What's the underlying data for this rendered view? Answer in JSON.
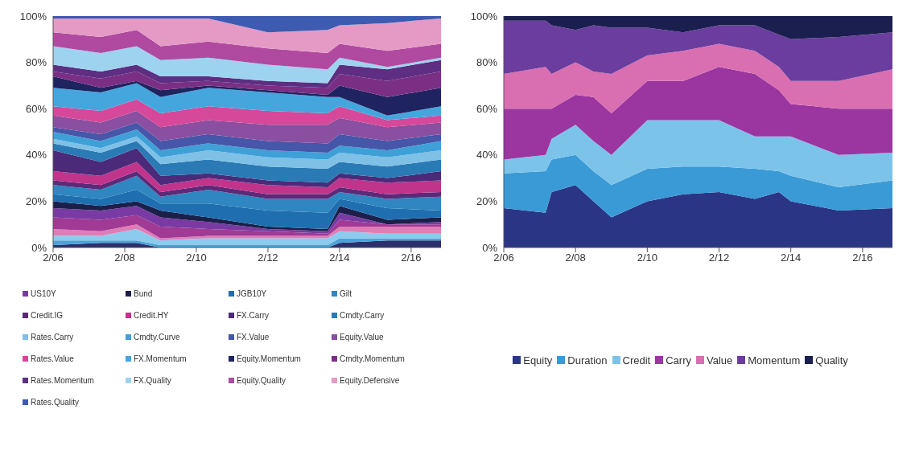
{
  "chart_data": [
    {
      "type": "area",
      "stacked": true,
      "legend": "bottom",
      "grid": false,
      "x": [
        "2006-02",
        "2007-06",
        "2008-06",
        "2009-02",
        "2010-06",
        "2012-02",
        "2013-10",
        "2014-02",
        "2015-06",
        "2016-12"
      ],
      "xlim": [
        "2006-02",
        "2016-12"
      ],
      "xticks": [
        {
          "value": "2006-02",
          "label": "2/06"
        },
        {
          "value": "2008-02",
          "label": "2/08"
        },
        {
          "value": "2010-02",
          "label": "2/10"
        },
        {
          "value": "2012-02",
          "label": "2/12"
        },
        {
          "value": "2014-02",
          "label": "2/14"
        },
        {
          "value": "2016-02",
          "label": "2/16"
        }
      ],
      "ylim": [
        0,
        100
      ],
      "yticks": [
        {
          "value": 0,
          "label": "0%"
        },
        {
          "value": 20,
          "label": "20%"
        },
        {
          "value": 40,
          "label": "40%"
        },
        {
          "value": 60,
          "label": "60%"
        },
        {
          "value": 80,
          "label": "80%"
        },
        {
          "value": 100,
          "label": "100%"
        }
      ],
      "series": [
        {
          "color": "#2b2f6e",
          "values": [
            1,
            2,
            2,
            0,
            0,
            0,
            0,
            2,
            3,
            3
          ]
        },
        {
          "color": "#4aa3d8",
          "values": [
            2,
            1,
            1,
            1,
            1,
            1,
            1,
            2,
            1,
            1
          ]
        },
        {
          "color": "#8ccbed",
          "values": [
            2,
            2,
            5,
            2,
            3,
            3,
            3,
            3,
            2,
            2
          ]
        },
        {
          "color": "#e07db6",
          "values": [
            3,
            2,
            2,
            1,
            1,
            1,
            1,
            2,
            3,
            3
          ]
        },
        {
          "color": "#a03a95",
          "values": [
            5,
            5,
            4,
            5,
            3,
            2,
            1,
            3,
            1,
            1
          ]
        },
        {
          "name": "US10Y",
          "color": "#7a3aa3",
          "values": [
            4,
            4,
            4,
            4,
            3,
            1,
            1,
            3,
            0,
            1
          ]
        },
        {
          "name": "Bund",
          "color": "#1c1f4a",
          "values": [
            3,
            2,
            2,
            3,
            2,
            1,
            1,
            3,
            2,
            2
          ]
        },
        {
          "name": "JGB10Y",
          "color": "#1f6fb0",
          "values": [
            3,
            3,
            5,
            3,
            6,
            7,
            7,
            3,
            5,
            3
          ]
        },
        {
          "name": "Gilt",
          "color": "#2f86c0",
          "values": [
            4,
            4,
            6,
            3,
            6,
            5,
            6,
            3,
            4,
            6
          ]
        },
        {
          "name": "Credit.IG",
          "color": "#5b2a78",
          "values": [
            2,
            2,
            2,
            2,
            2,
            2,
            2,
            2,
            2,
            2
          ]
        },
        {
          "name": "Credit.HY",
          "color": "#c0348c",
          "values": [
            4,
            4,
            4,
            3,
            3,
            4,
            3,
            4,
            5,
            5
          ]
        },
        {
          "name": "FX.Carry",
          "color": "#4b2a7a",
          "values": [
            9,
            6,
            6,
            4,
            2,
            2,
            2,
            2,
            2,
            4
          ]
        },
        {
          "name": "Cmdty.Carry",
          "color": "#2a7ab5",
          "values": [
            3,
            4,
            3,
            5,
            6,
            6,
            6,
            5,
            5,
            5
          ]
        },
        {
          "name": "Rates.Carry",
          "color": "#7ec0e6",
          "values": [
            2,
            2,
            2,
            3,
            4,
            4,
            4,
            4,
            4,
            4
          ]
        },
        {
          "name": "Cmdty.Curve",
          "color": "#3fa0d8",
          "values": [
            3,
            3,
            3,
            3,
            3,
            3,
            3,
            3,
            3,
            4
          ]
        },
        {
          "name": "FX.Value",
          "color": "#4656a8",
          "values": [
            2,
            3,
            3,
            4,
            4,
            4,
            4,
            5,
            4,
            3
          ]
        },
        {
          "name": "Equity.Value",
          "color": "#8a4fa0",
          "values": [
            5,
            5,
            5,
            6,
            6,
            7,
            8,
            7,
            6,
            5
          ]
        },
        {
          "name": "Rates.Value",
          "color": "#d6489a",
          "values": [
            4,
            5,
            5,
            6,
            6,
            6,
            5,
            5,
            3,
            3
          ]
        },
        {
          "name": "FX.Momentum",
          "color": "#45a6de",
          "values": [
            8,
            8,
            7,
            7,
            8,
            8,
            7,
            4,
            2,
            4
          ]
        },
        {
          "name": "Equity.Momentum",
          "color": "#1f2460",
          "values": [
            5,
            2,
            1,
            3,
            1,
            1,
            1,
            5,
            8,
            8
          ]
        },
        {
          "name": "Cmdty.Momentum",
          "color": "#7a2f85",
          "values": [
            2,
            4,
            4,
            3,
            2,
            2,
            3,
            5,
            7,
            7
          ]
        },
        {
          "name": "Rates.Momentum",
          "color": "#5e2e82",
          "values": [
            3,
            3,
            3,
            3,
            2,
            2,
            2,
            4,
            5,
            5
          ]
        },
        {
          "name": "FX.Quality",
          "color": "#9ed3f0",
          "values": [
            8,
            8,
            8,
            7,
            8,
            7,
            6,
            3,
            1,
            1
          ]
        },
        {
          "name": "Equity.Quality",
          "color": "#b04aa0",
          "values": [
            6,
            7,
            7,
            6,
            7,
            7,
            7,
            6,
            7,
            6
          ]
        },
        {
          "name": "Equity.Defensive",
          "color": "#e59ac6",
          "values": [
            6,
            8,
            5,
            12,
            10,
            7,
            10,
            8,
            12,
            11
          ]
        },
        {
          "name": "Rates.Quality",
          "color": "#3d5bb0",
          "values": [
            1,
            1,
            1,
            1,
            1,
            7,
            6,
            4,
            3,
            1
          ]
        }
      ]
    },
    {
      "type": "area",
      "stacked": true,
      "legend": "bottom",
      "grid": false,
      "x": [
        "2006-02",
        "2007-04",
        "2007-06",
        "2008-02",
        "2008-08",
        "2009-02",
        "2010-02",
        "2011-02",
        "2012-02",
        "2013-02",
        "2013-10",
        "2014-02",
        "2015-06",
        "2016-12"
      ],
      "xlim": [
        "2006-02",
        "2016-12"
      ],
      "xticks": [
        {
          "value": "2006-02",
          "label": "2/06"
        },
        {
          "value": "2008-02",
          "label": "2/08"
        },
        {
          "value": "2010-02",
          "label": "2/10"
        },
        {
          "value": "2012-02",
          "label": "2/12"
        },
        {
          "value": "2014-02",
          "label": "2/14"
        },
        {
          "value": "2016-02",
          "label": "2/16"
        }
      ],
      "ylim": [
        0,
        100
      ],
      "yticks": [
        {
          "value": 0,
          "label": "0%"
        },
        {
          "value": 20,
          "label": "20%"
        },
        {
          "value": 40,
          "label": "40%"
        },
        {
          "value": 60,
          "label": "60%"
        },
        {
          "value": 80,
          "label": "80%"
        },
        {
          "value": 100,
          "label": "100%"
        }
      ],
      "series": [
        {
          "name": "Equity",
          "color": "#2b3585",
          "values": [
            17,
            15,
            24,
            27,
            20,
            13,
            20,
            23,
            24,
            21,
            24,
            20,
            16,
            17
          ]
        },
        {
          "name": "Duration",
          "color": "#3a9ad6",
          "values": [
            15,
            18,
            14,
            13,
            13,
            14,
            14,
            12,
            11,
            13,
            9,
            11,
            10,
            12
          ]
        },
        {
          "name": "Credit",
          "color": "#7cc3ea",
          "values": [
            6,
            7,
            9,
            13,
            13,
            13,
            21,
            20,
            20,
            14,
            15,
            17,
            14,
            12
          ]
        },
        {
          "name": "Carry",
          "color": "#9b35a0",
          "values": [
            22,
            20,
            13,
            13,
            19,
            18,
            17,
            17,
            23,
            27,
            20,
            14,
            20,
            19
          ]
        },
        {
          "name": "Value",
          "color": "#d96fb1",
          "values": [
            15,
            18,
            15,
            14,
            11,
            17,
            11,
            13,
            10,
            10,
            10,
            10,
            12,
            17
          ]
        },
        {
          "name": "Momentum",
          "color": "#6b3d9e",
          "values": [
            23,
            20,
            21,
            14,
            20,
            20,
            12,
            8,
            8,
            11,
            14,
            18,
            19,
            16
          ]
        },
        {
          "name": "Quality",
          "color": "#1a1f4f",
          "values": [
            2,
            2,
            4,
            6,
            4,
            5,
            5,
            7,
            4,
            4,
            8,
            10,
            9,
            7
          ]
        }
      ]
    }
  ]
}
